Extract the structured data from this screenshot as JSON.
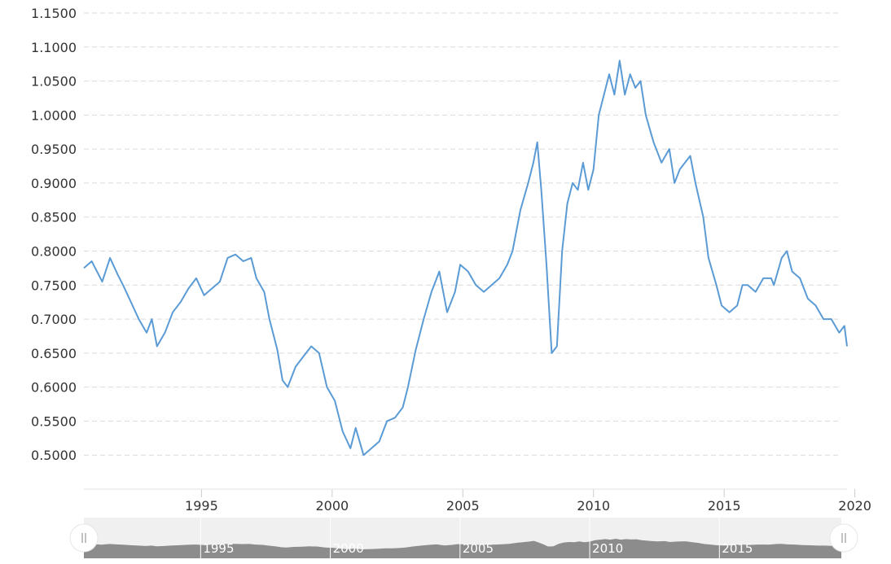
{
  "chart_data": {
    "type": "line",
    "title": "",
    "xlabel": "",
    "ylabel": "",
    "xlim": [
      1990.5,
      2019.7
    ],
    "ylim": [
      0.45,
      1.15
    ],
    "grid": true,
    "y_ticks": [
      "0.5000",
      "0.5500",
      "0.6000",
      "0.6500",
      "0.7000",
      "0.7500",
      "0.8000",
      "0.8500",
      "0.9000",
      "0.9500",
      "1.0000",
      "1.0500",
      "1.1000",
      "1.1500"
    ],
    "x_ticks": [
      "1995",
      "2000",
      "2005",
      "2010",
      "2015",
      "2020"
    ],
    "color": "#5b9bd5",
    "series": [
      {
        "x": [
          1990.5,
          1990.8,
          1991.2,
          1991.5,
          1991.8,
          1992.0,
          1992.3,
          1992.6,
          1992.9,
          1993.1,
          1993.3,
          1993.6,
          1993.9,
          1994.2,
          1994.5,
          1994.8,
          1995.1,
          1995.4,
          1995.7,
          1996.0,
          1996.3,
          1996.6,
          1996.9,
          1997.1,
          1997.4,
          1997.6,
          1997.9,
          1998.1,
          1998.3,
          1998.6,
          1998.9,
          1999.2,
          1999.5,
          1999.8,
          2000.1,
          2000.4,
          2000.7,
          2000.9,
          2001.2,
          2001.5,
          2001.8,
          2002.1,
          2002.4,
          2002.7,
          2002.9,
          2003.2,
          2003.5,
          2003.8,
          2004.1,
          2004.4,
          2004.7,
          2004.9,
          2005.2,
          2005.5,
          2005.8,
          2006.1,
          2006.4,
          2006.7,
          2006.9,
          2007.2,
          2007.5,
          2007.7,
          2007.85,
          2008.0,
          2008.2,
          2008.4,
          2008.6,
          2008.8,
          2009.0,
          2009.2,
          2009.4,
          2009.6,
          2009.8,
          2010.0,
          2010.2,
          2010.4,
          2010.6,
          2010.8,
          2011.0,
          2011.2,
          2011.4,
          2011.6,
          2011.8,
          2012.0,
          2012.3,
          2012.6,
          2012.9,
          2013.1,
          2013.3,
          2013.5,
          2013.7,
          2013.9,
          2014.2,
          2014.4,
          2014.7,
          2014.9,
          2015.2,
          2015.5,
          2015.7,
          2015.9,
          2016.2,
          2016.5,
          2016.8,
          2016.9,
          2017.2,
          2017.4,
          2017.6,
          2017.9,
          2018.2,
          2018.5,
          2018.8,
          2019.1,
          2019.4,
          2019.6,
          2019.7
        ],
        "y": [
          0.775,
          0.785,
          0.755,
          0.79,
          0.765,
          0.75,
          0.725,
          0.7,
          0.68,
          0.7,
          0.66,
          0.68,
          0.71,
          0.725,
          0.745,
          0.76,
          0.735,
          0.745,
          0.755,
          0.79,
          0.795,
          0.785,
          0.79,
          0.76,
          0.74,
          0.7,
          0.655,
          0.61,
          0.6,
          0.63,
          0.645,
          0.66,
          0.65,
          0.6,
          0.58,
          0.535,
          0.51,
          0.54,
          0.5,
          0.51,
          0.52,
          0.55,
          0.555,
          0.57,
          0.6,
          0.655,
          0.7,
          0.74,
          0.77,
          0.71,
          0.74,
          0.78,
          0.77,
          0.75,
          0.74,
          0.75,
          0.76,
          0.78,
          0.8,
          0.86,
          0.9,
          0.93,
          0.96,
          0.89,
          0.78,
          0.65,
          0.66,
          0.8,
          0.87,
          0.9,
          0.89,
          0.93,
          0.89,
          0.92,
          1.0,
          1.03,
          1.06,
          1.03,
          1.08,
          1.03,
          1.06,
          1.04,
          1.05,
          1.0,
          0.96,
          0.93,
          0.95,
          0.9,
          0.92,
          0.93,
          0.94,
          0.9,
          0.85,
          0.79,
          0.75,
          0.72,
          0.71,
          0.72,
          0.75,
          0.75,
          0.74,
          0.76,
          0.76,
          0.75,
          0.79,
          0.8,
          0.77,
          0.76,
          0.73,
          0.72,
          0.7,
          0.7,
          0.68,
          0.69,
          0.66
        ]
      }
    ]
  },
  "navigator": {
    "ticks": [
      "1995",
      "2000",
      "2005",
      "2010",
      "2015"
    ]
  }
}
